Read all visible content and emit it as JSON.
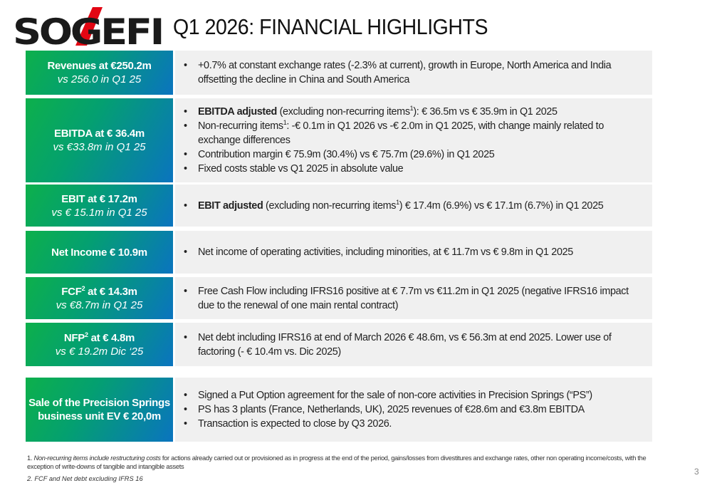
{
  "logo": {
    "text": "SOGEFI",
    "accent": "#e30613"
  },
  "title": "Q1 2026: FINANCIAL HIGHLIGHTS",
  "rows": [
    {
      "label": [
        {
          "t": "Revenues at €250.2m",
          "b": true
        }
      ],
      "sub": "vs 256.0 in Q1 25",
      "bullets": [
        [
          {
            "t": "+0.7% at constant exchange rates (-2.3% at current), growth in Europe, North America and India offsetting the decline in China and South America"
          }
        ]
      ]
    },
    {
      "label": [
        {
          "t": "EBITDA at € 36.4m",
          "b": true
        }
      ],
      "sub": "vs €33.8m in Q1 25",
      "bullets": [
        [
          {
            "t": "EBITDA adjusted",
            "b": true
          },
          {
            "t": " (excluding non-recurring items"
          },
          {
            "t": "1",
            "sup": true
          },
          {
            "t": "): € 36.5m vs € 35.9m in Q1 2025"
          }
        ],
        [
          {
            "t": "Non-recurring items"
          },
          {
            "t": "1",
            "sup": true
          },
          {
            "t": ": -€ 0.1m in Q1 2026 vs -€ 2.0m in Q1 2025, with change mainly related to exchange differences"
          }
        ],
        [
          {
            "t": "Contribution margin € 75.9m (30.4%) vs € 75.7m (29.6%) in Q1 2025"
          }
        ],
        [
          {
            "t": "Fixed costs stable vs Q1 2025 in absolute value"
          }
        ]
      ]
    },
    {
      "label": [
        {
          "t": "EBIT at € 17.2m",
          "b": true
        }
      ],
      "sub": "vs € 15.1m in Q1 25",
      "bullets": [
        [
          {
            "t": "EBIT adjusted",
            "b": true
          },
          {
            "t": " (excluding non-recurring items"
          },
          {
            "t": "1",
            "sup": true
          },
          {
            "t": ") € 17.4m (6.9%) vs € 17.1m (6.7%) in Q1 2025"
          }
        ]
      ]
    },
    {
      "label": [
        {
          "t": "Net Income € 10.9m",
          "b": true
        }
      ],
      "sub": "",
      "bullets": [
        [
          {
            "t": "Net income of operating activities, including minorities, at € 11.7m vs € 9.8m in Q1 2025"
          }
        ]
      ]
    },
    {
      "label": [
        {
          "t": "FCF",
          "b": true
        },
        {
          "t": "2",
          "sup": true,
          "b": true
        },
        {
          "t": " at",
          "b": true
        },
        {
          "t": " € 14.3m"
        }
      ],
      "sub": "vs €8.7m in Q1 25",
      "bullets": [
        [
          {
            "t": "Free Cash Flow including IFRS16 positive at € 7.7m vs €11.2m in Q1 2025 (negative IFRS16 impact due to the renewal of one main rental contract)"
          }
        ]
      ]
    },
    {
      "label": [
        {
          "t": "NFP",
          "b": true
        },
        {
          "t": "2",
          "sup": true,
          "b": true
        },
        {
          "t": " at € 4.8m",
          "b": true
        }
      ],
      "sub": "vs € 19.2m Dic ‘25",
      "bullets": [
        [
          {
            "t": "Net debt including IFRS16 at end of March 2026 € 48.6m, vs € 56.3m at end 2025. Lower use of factoring (- € 10.4m vs. Dic 2025)"
          }
        ]
      ]
    },
    {
      "label": [
        {
          "t": "Sale of the Precision Springs business unit EV € 20,0m",
          "b": true
        }
      ],
      "sub": "",
      "bullets": [
        [
          {
            "t": "Signed a Put Option agreement for the sale of non-core activities in Precision Springs (“PS”)"
          }
        ],
        [
          {
            "t": "PS has 3 plants (France, Netherlands, UK), 2025 revenues of €28.6m and €3.8m EBITDA"
          }
        ],
        [
          {
            "t": "Transaction is expected to close by Q3 2026."
          }
        ]
      ]
    }
  ],
  "footnote1_num": "1.",
  "footnote1_italic": "Non-recurring items include restructuring costs",
  "footnote1_rest": " for actions already carried out or provisioned as in progress at the end of the period, gains/losses from divestitures and exchange rates, other non operating income/costs, with the exception of write-downs of tangible and intangible assets",
  "footnote2": "2. FCF and Net debt excluding IFRS 16",
  "page_number": "3"
}
